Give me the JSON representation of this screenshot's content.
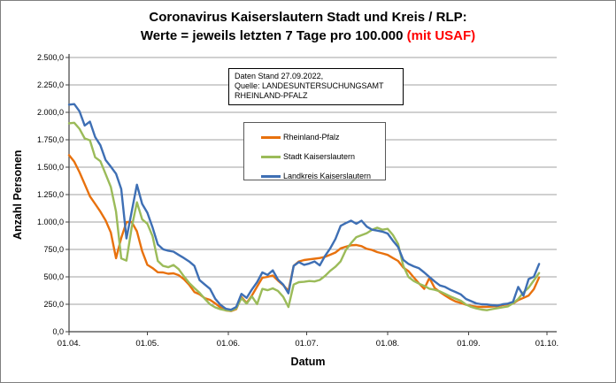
{
  "window": {
    "background": "#ffffff",
    "border_color": "#7f7f7f"
  },
  "title": {
    "line1": "Coronavirus Kaiserslautern Stadt und Kreis / RLP:",
    "line2_main": "Werte = jeweils letzten 7 Tage pro 100.000 ",
    "line2_highlight": "(mit USAF)",
    "highlight_color": "#ff0000"
  },
  "info_box": {
    "line1": "Daten Stand 27.09.2022,",
    "line2": "Quelle: LANDESUNTERSUCHUNGSAMT",
    "line3": "RHEINLAND-PFALZ"
  },
  "chart_data": {
    "type": "line",
    "title": "Coronavirus Kaiserslautern Stadt und Kreis / RLP: Werte = jeweils letzten 7 Tage pro 100.000 (mit USAF)",
    "xlabel": "Datum",
    "ylabel": "Anzahl Personen",
    "ylim": [
      0,
      2500
    ],
    "y_tick_step": 250,
    "y_tick_labels": [
      "0,0",
      "250,0",
      "500,0",
      "750,0",
      "1.000,0",
      "1.250,0",
      "1.500,0",
      "1.750,0",
      "2.000,0",
      "2.250,0",
      "2.500,0"
    ],
    "x_tick_labels": [
      "01.04.",
      "01.05.",
      "01.06.",
      "01.07.",
      "01.08.",
      "01.09.",
      "01.10."
    ],
    "x_tick_days": [
      0,
      30,
      61,
      91,
      122,
      153,
      183
    ],
    "x_total_days": 183,
    "sample_interval_days": 2,
    "grid": true,
    "legend_position": "inner-top-center",
    "gridline_color": "#a0a0a0",
    "axis_color": "#404040",
    "series": [
      {
        "name": "Rheinland-Pfalz",
        "color": "#e8710d",
        "values": [
          1610,
          1550,
          1455,
          1345,
          1235,
          1165,
          1095,
          1015,
          905,
          670,
          855,
          1000,
          1000,
          915,
          735,
          610,
          580,
          542,
          540,
          528,
          532,
          515,
          478,
          428,
          362,
          340,
          306,
          290,
          258,
          222,
          194,
          188,
          206,
          316,
          262,
          330,
          411,
          492,
          500,
          512,
          465,
          425,
          372,
          600,
          640,
          653,
          660,
          665,
          672,
          682,
          702,
          722,
          760,
          775,
          788,
          790,
          780,
          756,
          745,
          726,
          714,
          700,
          672,
          645,
          585,
          552,
          495,
          440,
          390,
          490,
          398,
          362,
          330,
          300,
          276,
          262,
          246,
          235,
          228,
          226,
          227,
          229,
          232,
          242,
          250,
          256,
          288,
          308,
          330,
          388,
          495
        ]
      },
      {
        "name": "Stadt Kaiserslautern",
        "color": "#9bbb59",
        "values": [
          1900,
          1905,
          1850,
          1762,
          1745,
          1590,
          1555,
          1438,
          1320,
          1095,
          668,
          648,
          950,
          1180,
          1025,
          985,
          870,
          645,
          600,
          588,
          608,
          570,
          505,
          445,
          398,
          355,
          300,
          250,
          222,
          205,
          195,
          190,
          212,
          306,
          256,
          322,
          252,
          390,
          378,
          395,
          372,
          318,
          225,
          430,
          452,
          455,
          462,
          458,
          472,
          508,
          555,
          592,
          642,
          745,
          808,
          862,
          880,
          898,
          928,
          948,
          930,
          938,
          882,
          800,
          600,
          498,
          462,
          438,
          418,
          392,
          382,
          368,
          345,
          322,
          302,
          282,
          248,
          226,
          212,
          202,
          196,
          206,
          214,
          222,
          230,
          258,
          298,
          358,
          402,
          468,
          535
        ]
      },
      {
        "name": "Landkreis Kaiserslautern",
        "color": "#3e6fb4",
        "values": [
          2070,
          2075,
          2010,
          1880,
          1915,
          1775,
          1700,
          1565,
          1505,
          1440,
          1300,
          850,
          1095,
          1340,
          1165,
          1085,
          950,
          795,
          752,
          738,
          730,
          700,
          672,
          640,
          600,
          470,
          430,
          390,
          300,
          245,
          210,
          200,
          225,
          345,
          308,
          385,
          452,
          540,
          518,
          560,
          475,
          430,
          350,
          600,
          635,
          610,
          622,
          640,
          605,
          690,
          760,
          845,
          965,
          990,
          1012,
          985,
          1012,
          958,
          930,
          922,
          912,
          895,
          830,
          772,
          655,
          618,
          596,
          578,
          540,
          498,
          458,
          422,
          408,
          382,
          362,
          340,
          298,
          278,
          258,
          250,
          248,
          242,
          238,
          250,
          256,
          272,
          408,
          328,
          480,
          502,
          618
        ]
      }
    ]
  }
}
